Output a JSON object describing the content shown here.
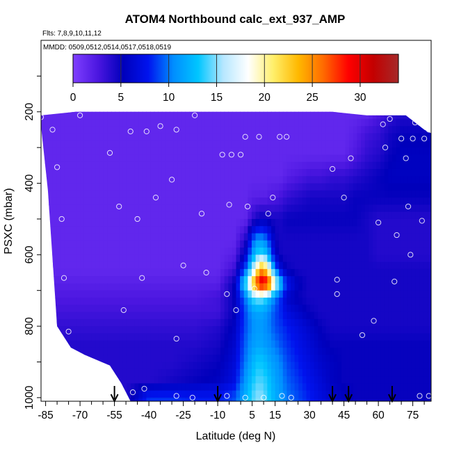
{
  "chart_data": {
    "type": "heatmap",
    "title": "ATOM4 Northbound calc_ext_937_AMP",
    "flights_label": "Flts: 7,8,9,10,11,12",
    "mmdd_label": "MMDD: 0509,0512,0514,0517,0518,0519",
    "xlabel": "Latitude (deg N)",
    "ylabel": "PSXC (mbar)",
    "xlim": [
      -87,
      83
    ],
    "ylim": [
      1010,
      0
    ],
    "x_ticks": [
      -85,
      -70,
      -55,
      -40,
      -25,
      -10,
      5,
      15,
      30,
      45,
      60,
      75
    ],
    "y_ticks": [
      200,
      400,
      600,
      800,
      1000
    ],
    "colorbar": {
      "min": 0,
      "max": 34,
      "ticks": [
        0,
        5,
        10,
        15,
        20,
        25,
        30
      ],
      "colors": [
        "#7f3fff",
        "#4b16e0",
        "#0000bb",
        "#0013ee",
        "#008dff",
        "#00c6ff",
        "#b6e7ff",
        "#ffffff",
        "#ffef6a",
        "#ffb800",
        "#ff6a00",
        "#ff0000",
        "#c30000",
        "#a52a2a"
      ]
    },
    "profile_cutoff_bottom_mbar": 1000,
    "top_boundary": [
      [
        -87,
        210
      ],
      [
        -72,
        200
      ],
      [
        -40,
        200
      ],
      [
        0,
        200
      ],
      [
        40,
        200
      ],
      [
        55,
        210
      ],
      [
        72,
        210
      ],
      [
        80,
        250
      ],
      [
        83,
        260
      ]
    ],
    "bottom_boundary": [
      [
        -87,
        240
      ],
      [
        -84,
        420
      ],
      [
        -80,
        800
      ],
      [
        -74,
        860
      ],
      [
        -68,
        880
      ],
      [
        -57,
        910
      ],
      [
        -52,
        960
      ],
      [
        -48,
        1010
      ],
      [
        83,
        1010
      ]
    ],
    "curtain": {
      "lats": [
        -87,
        -80,
        -70,
        -60,
        -50,
        -40,
        -30,
        -20,
        -10,
        -3,
        2,
        5,
        7,
        9,
        11,
        13,
        15,
        18,
        20,
        25,
        30,
        35,
        40,
        45,
        50,
        55,
        60,
        65,
        70,
        75,
        80,
        83
      ],
      "pres": [
        200,
        260,
        320,
        380,
        440,
        500,
        560,
        600,
        640,
        680,
        720,
        760,
        800,
        850,
        900,
        950,
        1000
      ],
      "values": [
        [
          1.5,
          1.5,
          1.5,
          1.5,
          1.5,
          1.5,
          1.5,
          1.5,
          1.5,
          1.5,
          1.5,
          1.5,
          1.5,
          1.5,
          1.5,
          1.5,
          1.5,
          1.5,
          1.5,
          1.5,
          1.5,
          1.5,
          1.5,
          1.5,
          1.5,
          1.5,
          2.5,
          3.5,
          4.0,
          4.0,
          4.0,
          4.0
        ],
        [
          1.5,
          1.5,
          1.5,
          1.5,
          1.5,
          1.5,
          1.5,
          1.5,
          1.5,
          1.5,
          1.5,
          1.5,
          1.5,
          1.5,
          1.5,
          1.5,
          1.5,
          1.5,
          1.5,
          1.5,
          1.5,
          1.5,
          1.5,
          1.5,
          2.0,
          3.0,
          3.5,
          4.5,
          5.0,
          5.0,
          5.0,
          5.0
        ],
        [
          1.5,
          1.5,
          1.5,
          1.5,
          1.5,
          1.5,
          1.5,
          1.5,
          1.5,
          1.5,
          1.5,
          1.5,
          1.5,
          1.5,
          1.5,
          1.5,
          1.5,
          1.5,
          1.5,
          1.5,
          1.5,
          1.5,
          1.5,
          1.5,
          2.5,
          3.5,
          4.0,
          5.0,
          5.5,
          5.5,
          5.5,
          5.5
        ],
        [
          1.5,
          1.5,
          1.5,
          1.5,
          1.5,
          1.5,
          1.5,
          1.5,
          1.5,
          1.5,
          1.5,
          1.5,
          1.5,
          1.5,
          1.5,
          1.5,
          1.5,
          1.5,
          2.0,
          2.5,
          3.0,
          3.0,
          3.5,
          3.5,
          4.0,
          4.5,
          5.0,
          5.5,
          5.5,
          5.5,
          5.5,
          5.5
        ],
        [
          1.5,
          1.5,
          1.5,
          1.5,
          1.5,
          1.5,
          1.5,
          1.5,
          1.5,
          1.5,
          1.5,
          2.0,
          2.0,
          2.0,
          2.0,
          2.5,
          2.5,
          3.0,
          3.5,
          4.0,
          4.5,
          4.5,
          4.5,
          4.5,
          5.0,
          5.0,
          5.0,
          5.0,
          5.0,
          5.0,
          5.0,
          5.0
        ],
        [
          1.5,
          1.5,
          1.5,
          1.5,
          1.5,
          1.5,
          1.5,
          1.5,
          1.5,
          1.5,
          1.5,
          3.5,
          4.5,
          5.0,
          5.0,
          4.5,
          4.5,
          4.5,
          5.0,
          5.0,
          5.0,
          5.0,
          5.0,
          5.0,
          5.0,
          4.5,
          4.0,
          4.0,
          4.0,
          4.0,
          4.0,
          4.0
        ],
        [
          1.5,
          1.5,
          1.5,
          1.5,
          1.5,
          1.5,
          1.5,
          1.5,
          1.5,
          1.5,
          4.0,
          9.0,
          11.0,
          11.0,
          10.0,
          8.0,
          5.0,
          4.5,
          4.5,
          4.5,
          4.5,
          4.5,
          4.5,
          4.5,
          4.5,
          4.5,
          4.0,
          4.0,
          4.0,
          4.0,
          4.0,
          4.0
        ],
        [
          1.5,
          1.5,
          1.5,
          1.5,
          1.5,
          1.5,
          1.5,
          1.5,
          1.5,
          2.0,
          6.0,
          11.0,
          13.5,
          14.0,
          13.0,
          10.0,
          6.0,
          4.5,
          4.5,
          4.5,
          4.5,
          4.5,
          4.5,
          4.5,
          4.5,
          4.5,
          4.0,
          4.0,
          4.0,
          4.0,
          4.0,
          4.0
        ],
        [
          1.5,
          1.5,
          1.5,
          1.5,
          1.5,
          1.5,
          1.5,
          1.5,
          1.5,
          3.0,
          9.0,
          15.0,
          20.0,
          24.0,
          22.0,
          16.0,
          10.0,
          6.0,
          5.0,
          4.5,
          4.5,
          4.5,
          4.5,
          4.5,
          4.5,
          4.5,
          4.5,
          4.5,
          4.5,
          4.5,
          4.5,
          4.5
        ],
        [
          2.0,
          2.0,
          2.0,
          2.0,
          2.0,
          2.0,
          2.0,
          2.0,
          2.0,
          5.0,
          14.0,
          22.0,
          28.0,
          31.0,
          30.0,
          26.0,
          18.0,
          12.0,
          8.0,
          5.5,
          4.5,
          4.5,
          4.5,
          4.5,
          4.5,
          4.5,
          4.5,
          4.5,
          4.5,
          4.5,
          4.5,
          4.5
        ],
        [
          2.5,
          2.5,
          2.5,
          2.5,
          2.5,
          2.5,
          2.5,
          2.5,
          3.0,
          5.0,
          10.0,
          14.0,
          15.0,
          15.0,
          14.0,
          12.0,
          10.0,
          8.0,
          6.0,
          5.0,
          4.5,
          4.5,
          4.5,
          4.5,
          4.5,
          4.5,
          4.5,
          4.5,
          4.5,
          4.5,
          4.5,
          4.5
        ],
        [
          3.0,
          3.0,
          3.0,
          3.0,
          3.0,
          3.0,
          3.0,
          3.0,
          3.0,
          5.0,
          9.0,
          11.0,
          11.5,
          11.5,
          11.0,
          10.0,
          9.0,
          8.0,
          7.0,
          6.0,
          5.0,
          4.5,
          4.5,
          4.5,
          4.5,
          4.5,
          4.5,
          4.5,
          4.5,
          4.5,
          4.5,
          4.5
        ],
        [
          3.5,
          3.5,
          3.5,
          3.5,
          3.5,
          3.5,
          3.5,
          3.5,
          4.0,
          5.5,
          9.0,
          10.5,
          11.0,
          11.0,
          10.5,
          10.0,
          9.0,
          8.5,
          8.0,
          7.0,
          6.0,
          5.0,
          4.5,
          4.5,
          4.5,
          4.5,
          4.5,
          4.5,
          4.5,
          4.5,
          4.5,
          4.5
        ],
        [
          4.0,
          4.0,
          4.0,
          4.0,
          4.0,
          4.0,
          4.0,
          4.0,
          4.5,
          6.0,
          9.5,
          11.0,
          11.5,
          11.5,
          11.0,
          10.5,
          10.0,
          9.0,
          8.5,
          7.5,
          6.5,
          5.5,
          5.0,
          5.0,
          5.0,
          5.0,
          5.0,
          5.0,
          5.0,
          5.0,
          5.0,
          5.0
        ],
        [
          4.0,
          4.0,
          4.0,
          4.0,
          4.0,
          4.0,
          4.0,
          4.5,
          5.0,
          6.5,
          10.0,
          12.0,
          13.0,
          13.0,
          12.5,
          11.5,
          11.0,
          10.0,
          9.0,
          8.0,
          7.0,
          6.0,
          5.5,
          5.0,
          5.0,
          5.0,
          5.0,
          5.0,
          5.0,
          5.0,
          5.0,
          5.0
        ],
        [
          4.0,
          4.0,
          4.0,
          4.0,
          4.0,
          4.0,
          4.5,
          5.0,
          5.5,
          7.0,
          11.0,
          13.0,
          14.0,
          14.0,
          13.5,
          12.5,
          11.5,
          10.5,
          9.5,
          8.5,
          7.5,
          6.5,
          5.5,
          5.0,
          5.0,
          5.0,
          5.0,
          5.0,
          5.0,
          5.0,
          5.0,
          5.0
        ],
        [
          4.0,
          4.0,
          4.0,
          4.0,
          4.0,
          8.5,
          8.5,
          8.0,
          8.0,
          9.0,
          12.0,
          14.0,
          15.0,
          15.0,
          14.0,
          13.0,
          12.0,
          11.0,
          10.0,
          9.0,
          8.0,
          7.0,
          6.0,
          5.5,
          5.0,
          5.0,
          5.0,
          5.0,
          5.0,
          5.0,
          5.0,
          5.0
        ]
      ]
    },
    "sample_points": [
      [
        -87,
        215
      ],
      [
        -82,
        250
      ],
      [
        -80,
        355
      ],
      [
        -78,
        500
      ],
      [
        -77,
        665
      ],
      [
        -75,
        815
      ],
      [
        -70,
        210
      ],
      [
        -57,
        315
      ],
      [
        -53,
        465
      ],
      [
        -51,
        755
      ],
      [
        -48,
        255
      ],
      [
        -45,
        500
      ],
      [
        -43,
        665
      ],
      [
        -41,
        255
      ],
      [
        -37,
        440
      ],
      [
        -35,
        240
      ],
      [
        -30,
        390
      ],
      [
        -28,
        835
      ],
      [
        -28,
        250
      ],
      [
        -25,
        630
      ],
      [
        -20,
        210
      ],
      [
        -17,
        485
      ],
      [
        -15,
        650
      ],
      [
        -8,
        320
      ],
      [
        -6,
        710
      ],
      [
        -5,
        460
      ],
      [
        -4,
        320
      ],
      [
        -2,
        755
      ],
      [
        0,
        320
      ],
      [
        2,
        270
      ],
      [
        3,
        465
      ],
      [
        6,
        695
      ],
      [
        8,
        270
      ],
      [
        12,
        485
      ],
      [
        14,
        440
      ],
      [
        17,
        270
      ],
      [
        20,
        270
      ],
      [
        40,
        360
      ],
      [
        42,
        670
      ],
      [
        42,
        710
      ],
      [
        45,
        440
      ],
      [
        48,
        330
      ],
      [
        53,
        825
      ],
      [
        58,
        785
      ],
      [
        60,
        510
      ],
      [
        62,
        235
      ],
      [
        63,
        300
      ],
      [
        65,
        220
      ],
      [
        67,
        675
      ],
      [
        68,
        545
      ],
      [
        70,
        275
      ],
      [
        72,
        330
      ],
      [
        73,
        465
      ],
      [
        74,
        600
      ],
      [
        75,
        275
      ],
      [
        76,
        230
      ],
      [
        78,
        995
      ],
      [
        79,
        505
      ],
      [
        80,
        275
      ],
      [
        82,
        250
      ],
      [
        82,
        995
      ],
      [
        -52,
        1000
      ],
      [
        -47,
        985
      ],
      [
        -42,
        975
      ],
      [
        -28,
        995
      ],
      [
        -21,
        1000
      ],
      [
        -6,
        995
      ],
      [
        2,
        1000
      ],
      [
        10,
        1000
      ],
      [
        18,
        995
      ],
      [
        22,
        1000
      ]
    ],
    "arrows_lat": [
      -55,
      -10,
      40,
      47,
      66
    ]
  }
}
